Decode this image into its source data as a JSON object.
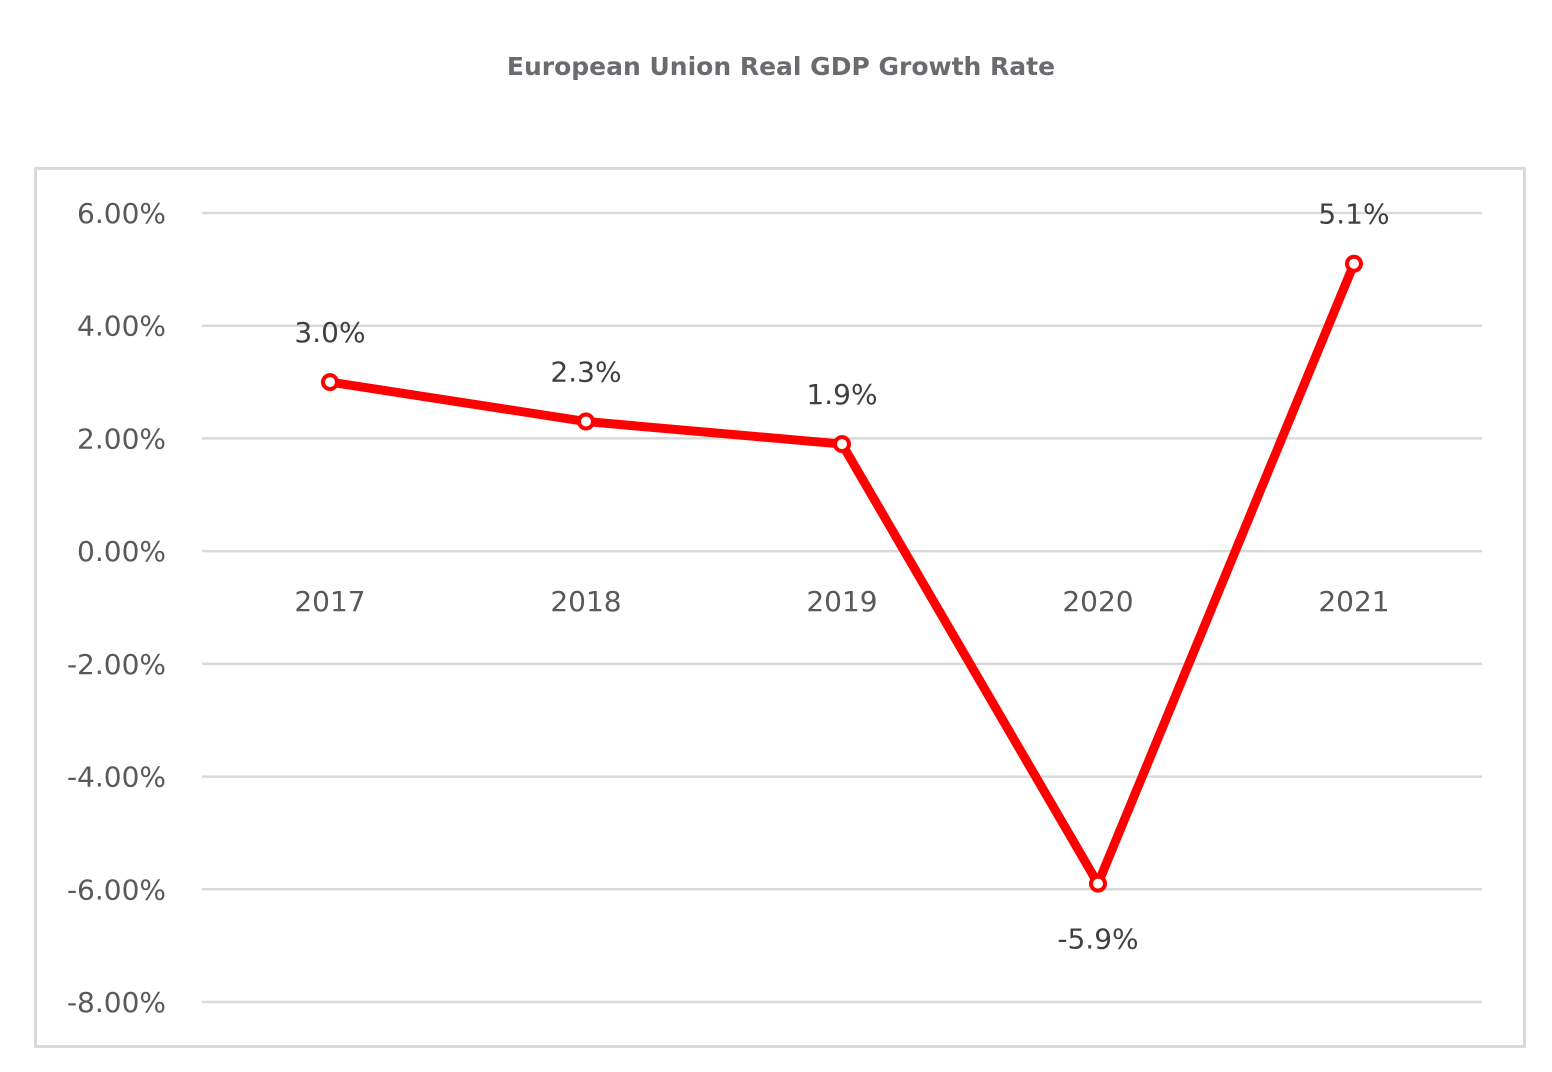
{
  "chart_data": {
    "type": "line",
    "title": "European Union Real GDP Growth Rate",
    "xlabel": "",
    "ylabel": "",
    "categories": [
      "2017",
      "2018",
      "2019",
      "2020",
      "2021"
    ],
    "series": [
      {
        "name": "Real GDP Growth Rate",
        "values": [
          3.0,
          2.3,
          1.9,
          -5.9,
          5.1
        ],
        "data_labels": [
          "3.0%",
          "2.3%",
          "1.9%",
          "-5.9%",
          "5.1%"
        ],
        "color": "#ff0000"
      }
    ],
    "ylim": [
      -8,
      6
    ],
    "yticks": [
      6,
      4,
      2,
      0,
      -2,
      -4,
      -6,
      -8
    ],
    "ytick_labels": [
      "6.00%",
      "4.00%",
      "2.00%",
      "0.00%",
      "-2.00%",
      "-4.00%",
      "-6.00%",
      "-8.00%"
    ],
    "grid": true,
    "legend": "none",
    "x_axis_crosses_at": 0
  }
}
